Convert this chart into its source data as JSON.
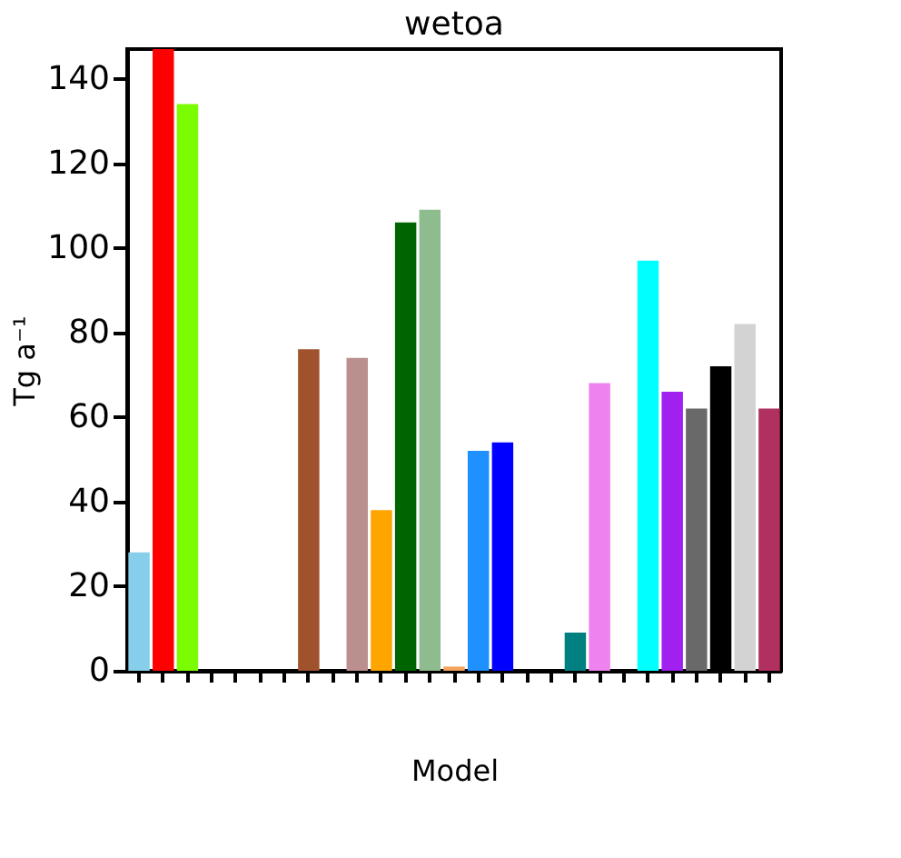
{
  "chart_data": {
    "type": "bar",
    "title": "wetoa",
    "xlabel": "Model",
    "ylabel": "Tg a⁻¹",
    "categories": [
      null,
      null,
      null,
      null,
      null,
      null,
      null,
      null,
      null,
      null,
      null,
      null,
      null,
      null,
      null,
      null,
      null,
      null,
      null,
      null,
      null,
      null,
      null,
      null,
      null,
      null,
      null
    ],
    "values": [
      28,
      147,
      134,
      null,
      null,
      null,
      null,
      76,
      null,
      74,
      38,
      106,
      109,
      1,
      52,
      54,
      null,
      null,
      9,
      68,
      null,
      97,
      66,
      62,
      72,
      82,
      62
    ],
    "colors": [
      "#87ceeb",
      "#ff0000",
      "#7cfc00",
      null,
      null,
      null,
      null,
      "#a0522d",
      null,
      "#bc8f8f",
      "#ffa500",
      "#006400",
      "#8fbc8f",
      "#f4a460",
      "#1e90ff",
      "#0000ff",
      null,
      null,
      "#008080",
      "#ee82ee",
      null,
      "#00ffff",
      "#a020f0",
      "#696969",
      "#000000",
      "#d3d3d3",
      "#b03060"
    ],
    "ylim": [
      0,
      147
    ],
    "yticks": [
      0,
      20,
      40,
      60,
      80,
      100,
      120,
      140
    ],
    "grid": false,
    "tick_labels": "y"
  }
}
